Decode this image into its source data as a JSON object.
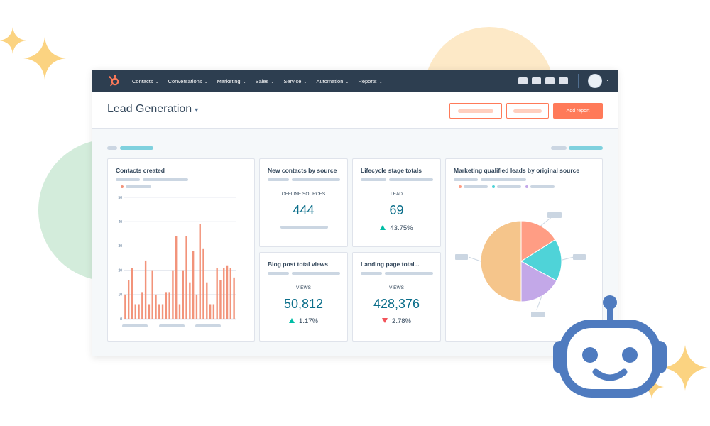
{
  "nav": {
    "items": [
      {
        "label": "Contacts"
      },
      {
        "label": "Conversations"
      },
      {
        "label": "Marketing"
      },
      {
        "label": "Sales"
      },
      {
        "label": "Service"
      },
      {
        "label": "Automation"
      },
      {
        "label": "Reports"
      }
    ],
    "logo_icon": "sprocket-logo-icon",
    "caret_icon": "chevron-down-icon"
  },
  "header": {
    "title": "Lead Generation",
    "title_caret": "▾",
    "primary_button": "Add report"
  },
  "colors": {
    "nav_bg": "#2d3e50",
    "accent_orange": "#ff7a59",
    "kpi_teal": "#0b6e8a",
    "positive": "#00bda5",
    "negative": "#f2545b",
    "bar": "#f2937a"
  },
  "cards": {
    "contacts_created": {
      "title": "Contacts created"
    },
    "new_contacts": {
      "title": "New contacts by source",
      "label": "OFFLINE SOURCES",
      "value": "444"
    },
    "lifecycle": {
      "title": "Lifecycle stage totals",
      "label": "LEAD",
      "value": "69",
      "change": "43.75%",
      "direction": "up"
    },
    "blog": {
      "title": "Blog post total views",
      "label": "VIEWS",
      "value": "50,812",
      "change": "1.17%",
      "direction": "up"
    },
    "landing": {
      "title": "Landing page total...",
      "label": "VIEWS",
      "value": "428,376",
      "change": "2.78%",
      "direction": "down"
    },
    "mql": {
      "title": "Marketing qualified leads by original source"
    }
  },
  "chart_data": [
    {
      "type": "bar",
      "title": "Contacts created",
      "ylim": [
        0,
        50
      ],
      "yticks": [
        "50",
        "40",
        "30",
        "20",
        "10",
        "0"
      ],
      "values": [
        10,
        16,
        21,
        6,
        6,
        11,
        24,
        6,
        20,
        10,
        6,
        6,
        11,
        11,
        20,
        34,
        6,
        20,
        34,
        15,
        28,
        10,
        39,
        29,
        15,
        6,
        6,
        21,
        16,
        21,
        22,
        21,
        17
      ],
      "color": "#f2937a",
      "grid": true
    },
    {
      "type": "pie",
      "title": "Marketing qualified leads by original source",
      "slices": [
        {
          "value": 16,
          "color": "#ff9d84"
        },
        {
          "value": 17,
          "color": "#4fd3d8"
        },
        {
          "value": 17,
          "color": "#c3a8e8"
        },
        {
          "value": 50,
          "color": "#f5c58b"
        }
      ],
      "legend_colors": [
        "#ff9d84",
        "#4fd3d8",
        "#c3a8e8"
      ]
    }
  ]
}
